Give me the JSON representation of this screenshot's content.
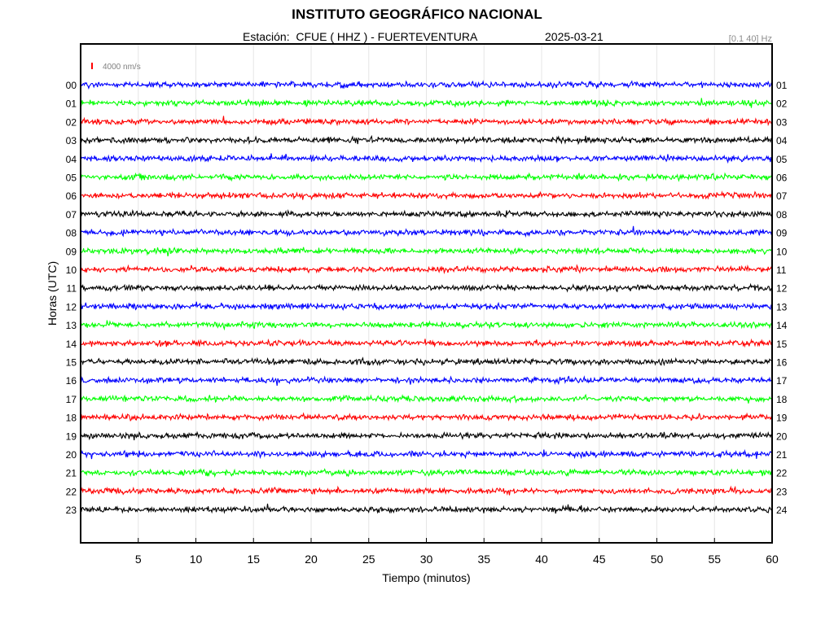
{
  "header": {
    "title": "INSTITUTO GEOGRÁFICO NACIONAL",
    "station_line": "Estación:  CFUE ( HHZ ) - FUERTEVENTURA",
    "date": "2025-03-21",
    "filter_band": "[0.1 40] Hz"
  },
  "scale_label": "4000 nm/s",
  "colors": {
    "blue": "#0000ff",
    "green": "#00ff00",
    "red": "#ff0000",
    "black": "#000000",
    "scale_bar": "#ff0000",
    "scale_text": "#808080",
    "grid": "#e6e6e6"
  },
  "chart_data": {
    "type": "line",
    "title": "INSTITUTO GEOGRÁFICO NACIONAL",
    "xlabel": "Tiempo (minutos)",
    "ylabel": "Horas (UTC)",
    "xlim": [
      0,
      60
    ],
    "x_ticks": [
      5,
      10,
      15,
      20,
      25,
      30,
      35,
      40,
      45,
      50,
      55,
      60
    ],
    "grid": true,
    "color_cycle": [
      "blue",
      "green",
      "red",
      "black"
    ],
    "left_labels": [
      "00",
      "01",
      "02",
      "03",
      "04",
      "05",
      "06",
      "07",
      "08",
      "09",
      "10",
      "11",
      "12",
      "13",
      "14",
      "15",
      "16",
      "17",
      "18",
      "19",
      "20",
      "21",
      "22",
      "23"
    ],
    "right_labels": [
      "01",
      "02",
      "03",
      "04",
      "05",
      "06",
      "07",
      "08",
      "09",
      "10",
      "11",
      "12",
      "13",
      "14",
      "15",
      "16",
      "17",
      "18",
      "19",
      "20",
      "21",
      "22",
      "23",
      "24"
    ]
  }
}
